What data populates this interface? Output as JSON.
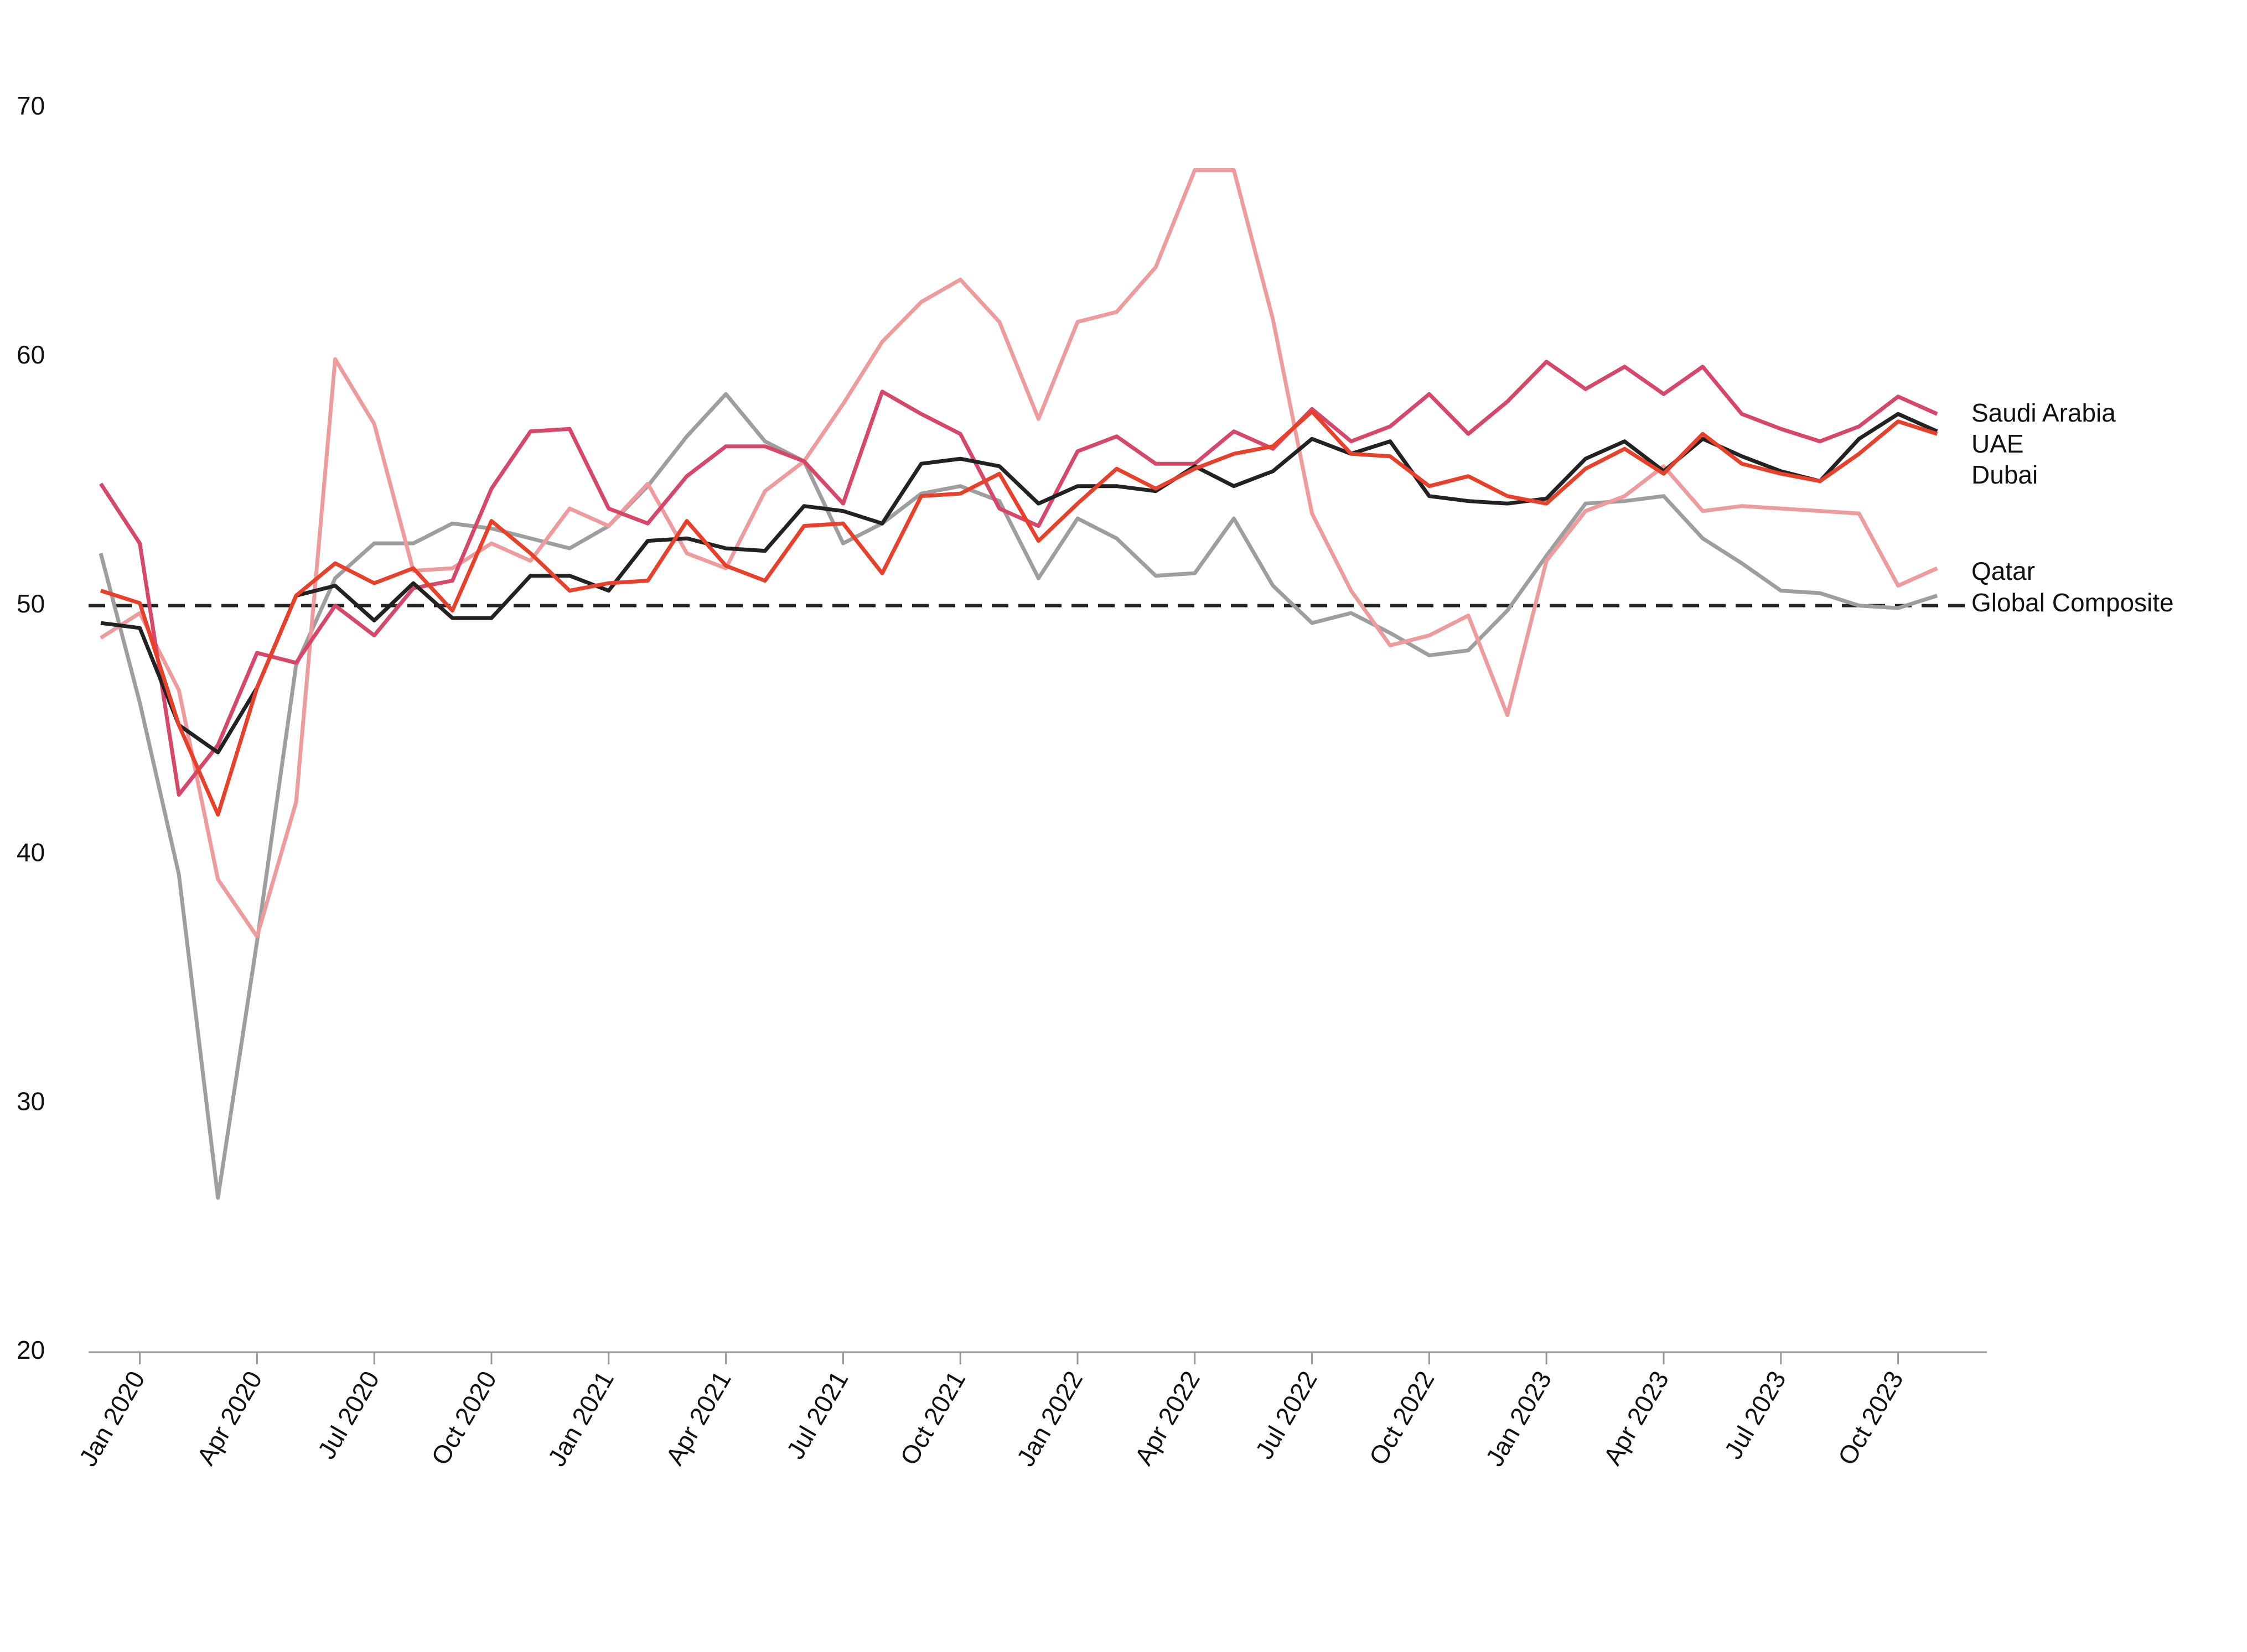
{
  "chart_data": {
    "type": "line",
    "categories": [
      null,
      "Jan 2020",
      null,
      null,
      "Apr 2020",
      null,
      null,
      "Jul 2020",
      null,
      null,
      "Oct 2020",
      null,
      null,
      "Jan 2021",
      null,
      null,
      "Apr 2021",
      null,
      null,
      "Jul 2021",
      null,
      null,
      "Oct 2021",
      null,
      null,
      "Jan 2022",
      null,
      null,
      "Apr 2022",
      null,
      null,
      "Jul 2022",
      null,
      null,
      "Oct 2022",
      null,
      null,
      "Jan 2023",
      null,
      null,
      "Apr 2023",
      null,
      null,
      "Jul 2023",
      null,
      null,
      "Oct 2023",
      null
    ],
    "series": [
      {
        "name": "Saudi Arabia",
        "color": "#d6476a",
        "values": [
          54.9,
          52.5,
          42.4,
          44.4,
          48.1,
          47.7,
          50.0,
          48.8,
          50.7,
          51.0,
          54.7,
          57.0,
          57.1,
          53.9,
          53.3,
          55.2,
          56.4,
          56.4,
          55.8,
          54.1,
          58.6,
          57.7,
          56.9,
          53.9,
          53.2,
          56.2,
          56.8,
          55.7,
          55.7,
          57.0,
          56.3,
          57.9,
          56.6,
          57.2,
          58.5,
          56.9,
          58.2,
          59.8,
          58.7,
          59.6,
          58.5,
          59.6,
          57.7,
          57.1,
          56.6,
          57.2,
          58.4,
          57.7
        ]
      },
      {
        "name": "UAE",
        "color": "#e8402a",
        "values": [
          50.6,
          50.1,
          45.2,
          41.6,
          46.7,
          50.4,
          51.7,
          50.9,
          51.5,
          49.8,
          53.4,
          52.1,
          50.6,
          50.9,
          51.0,
          53.4,
          51.6,
          51.0,
          53.2,
          53.3,
          51.3,
          54.4,
          54.5,
          55.3,
          52.6,
          54.1,
          55.5,
          54.7,
          55.5,
          56.1,
          56.4,
          57.8,
          56.1,
          56.0,
          54.8,
          55.2,
          54.4,
          54.1,
          55.5,
          56.3,
          55.3,
          56.9,
          55.7,
          55.3,
          55.0,
          56.1,
          57.4,
          56.9
        ]
      },
      {
        "name": "Dubai",
        "color": "#222222",
        "values": [
          49.3,
          49.1,
          45.2,
          44.1,
          46.7,
          50.4,
          50.8,
          49.4,
          50.9,
          49.5,
          49.5,
          51.2,
          51.2,
          50.6,
          52.6,
          52.7,
          52.3,
          52.2,
          54.0,
          53.8,
          53.3,
          55.7,
          55.9,
          55.6,
          54.1,
          54.8,
          54.8,
          54.6,
          55.6,
          54.8,
          55.4,
          56.7,
          56.1,
          56.6,
          54.4,
          54.2,
          54.1,
          54.3,
          55.9,
          56.6,
          55.4,
          56.7,
          56.0,
          55.4,
          55.0,
          56.7,
          57.7,
          57.0
        ]
      },
      {
        "name": "Qatar",
        "color": "#ee9b9d",
        "values": [
          48.7,
          49.7,
          46.6,
          39.0,
          36.7,
          42.1,
          59.9,
          57.3,
          51.4,
          51.5,
          52.5,
          51.8,
          53.9,
          53.2,
          54.9,
          52.1,
          51.5,
          54.6,
          55.8,
          58.1,
          60.6,
          62.2,
          63.1,
          61.4,
          57.5,
          61.4,
          61.8,
          63.6,
          67.5,
          67.5,
          61.5,
          53.7,
          50.6,
          48.4,
          48.8,
          49.6,
          45.6,
          51.8,
          53.8,
          54.4,
          55.6,
          53.8,
          54.0,
          53.9,
          53.8,
          53.7,
          50.8,
          51.5
        ]
      },
      {
        "name": "Global Composite",
        "color": "#9e9e9e",
        "values": [
          52.1,
          46.1,
          39.2,
          26.2,
          36.5,
          47.6,
          51.1,
          52.5,
          52.5,
          53.3,
          53.1,
          52.7,
          52.3,
          53.2,
          54.8,
          56.8,
          58.5,
          56.6,
          55.8,
          52.5,
          53.3,
          54.5,
          54.8,
          54.2,
          51.1,
          53.5,
          52.7,
          51.2,
          51.3,
          53.5,
          50.8,
          49.3,
          49.7,
          48.9,
          48.0,
          48.2,
          49.8,
          52.0,
          54.1,
          54.2,
          54.4,
          52.7,
          51.7,
          50.6,
          50.5,
          50.0,
          49.9,
          50.4
        ]
      }
    ],
    "ylim": [
      20,
      70
    ],
    "yticks": [
      20,
      30,
      40,
      50,
      60,
      70
    ],
    "reference_line": 50,
    "grid": false
  }
}
